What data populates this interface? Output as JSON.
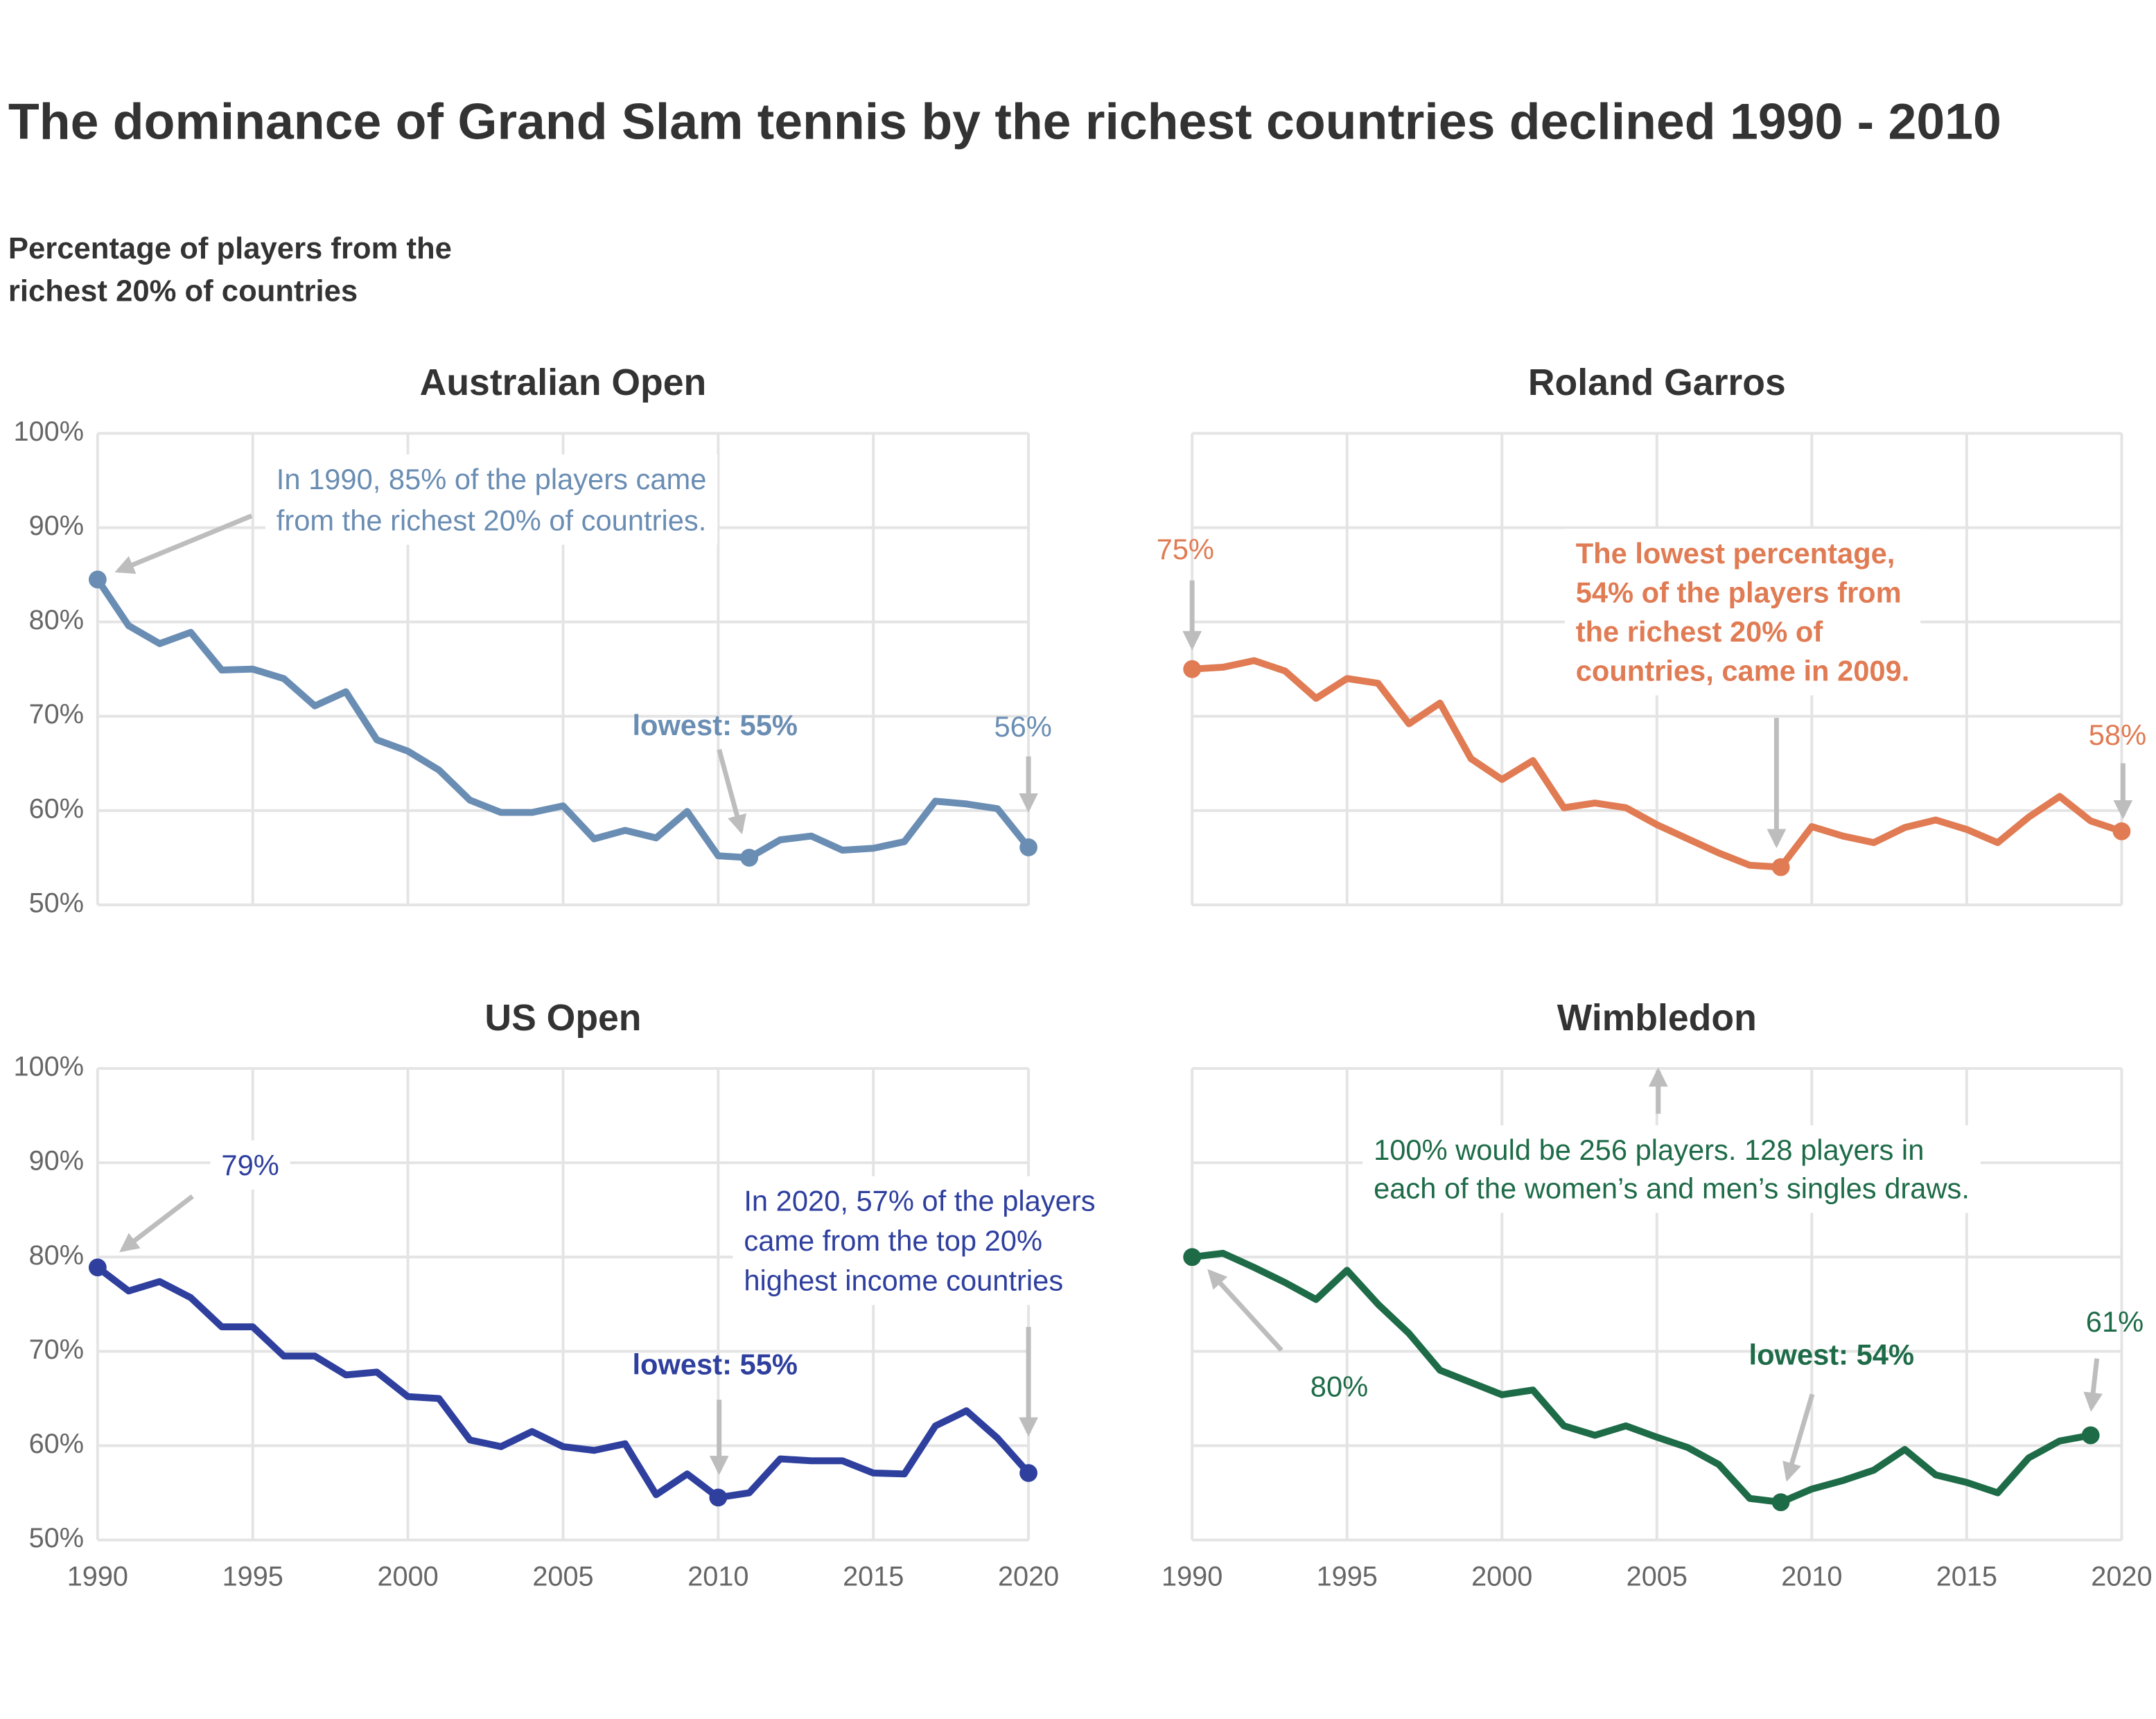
{
  "title": "The dominance of Grand Slam tennis by the richest countries declined 1990 - 2010",
  "subtitle": [
    "Percentage of players from the",
    "richest 20% of countries"
  ],
  "chart_data": [
    {
      "type": "line",
      "title": "Australian Open",
      "color": "#6a8db3",
      "x": [
        1990,
        1991,
        1992,
        1993,
        1994,
        1995,
        1996,
        1997,
        1998,
        1999,
        2000,
        2001,
        2002,
        2003,
        2004,
        2005,
        2006,
        2007,
        2008,
        2009,
        2010,
        2011,
        2012,
        2013,
        2014,
        2015,
        2016,
        2017,
        2018,
        2019,
        2020
      ],
      "values": [
        84.5,
        79.6,
        77.7,
        78.9,
        74.9,
        75,
        74,
        71.1,
        72.6,
        67.5,
        66.3,
        64.3,
        61.1,
        59.8,
        59.8,
        60.5,
        57,
        57.9,
        57.1,
        59.9,
        55.2,
        55,
        56.9,
        57.3,
        55.8,
        56,
        56.7,
        61,
        60.7,
        60.2,
        56.1
      ],
      "xlim": [
        1990,
        2020
      ],
      "ylim": [
        50,
        100
      ],
      "xticks": [
        1990,
        1995,
        2000,
        2005,
        2010,
        2015,
        2020
      ],
      "yticks": [
        {
          "value": 50,
          "label": "50%"
        },
        {
          "value": 60,
          "label": "60%"
        },
        {
          "value": 70,
          "label": "70%"
        },
        {
          "value": 80,
          "label": "80%"
        },
        {
          "value": 90,
          "label": "90%"
        },
        {
          "value": 100,
          "label": "100%"
        }
      ],
      "grid": true,
      "annotations": [
        [
          "In 1990, 85% of the players came",
          "from the richest 20% of countries."
        ],
        [
          "lowest: 55%"
        ],
        [
          "56%"
        ]
      ]
    },
    {
      "type": "line",
      "title": "Roland Garros",
      "color": "#e07b53",
      "x": [
        1990,
        1991,
        1992,
        1993,
        1994,
        1995,
        1996,
        1997,
        1998,
        1999,
        2000,
        2001,
        2002,
        2003,
        2004,
        2005,
        2006,
        2007,
        2008,
        2009,
        2010,
        2011,
        2012,
        2013,
        2014,
        2015,
        2016,
        2017,
        2018,
        2019,
        2020
      ],
      "values": [
        75,
        75.2,
        75.9,
        74.8,
        71.9,
        74,
        73.5,
        69.2,
        71.4,
        65.5,
        63.3,
        65.3,
        60.3,
        60.8,
        60.3,
        58.5,
        57,
        55.5,
        54.2,
        54,
        58.3,
        57.3,
        56.6,
        58.2,
        59,
        58,
        56.6,
        59.3,
        61.5,
        58.9,
        57.8
      ],
      "xlim": [
        1990,
        2020
      ],
      "ylim": [
        50,
        100
      ],
      "xticks": [
        1990,
        1995,
        2000,
        2005,
        2010,
        2015,
        2020
      ],
      "yticks": [
        50,
        60,
        70,
        80,
        90,
        100
      ],
      "grid": true,
      "annotations": [
        [
          "75%"
        ],
        [
          "The lowest percentage,",
          "54% of the players from",
          "the richest  20% of",
          "countries, came in 2009."
        ],
        [
          "58%"
        ]
      ]
    },
    {
      "type": "line",
      "title": "US Open",
      "color": "#2e3f9e",
      "x": [
        1990,
        1991,
        1992,
        1993,
        1994,
        1995,
        1996,
        1997,
        1998,
        1999,
        2000,
        2001,
        2002,
        2003,
        2004,
        2005,
        2006,
        2007,
        2008,
        2009,
        2010,
        2011,
        2012,
        2013,
        2014,
        2015,
        2016,
        2017,
        2018,
        2019,
        2020
      ],
      "values": [
        78.9,
        76.4,
        77.4,
        75.7,
        72.6,
        72.6,
        69.5,
        69.5,
        67.5,
        67.8,
        65.2,
        65,
        60.6,
        59.9,
        61.5,
        59.9,
        59.5,
        60.2,
        54.8,
        57,
        54.5,
        55,
        58.6,
        58.4,
        58.4,
        57.1,
        57,
        62.1,
        63.7,
        60.8,
        57.1
      ],
      "xlim": [
        1990,
        2020
      ],
      "ylim": [
        50,
        100
      ],
      "xticks": [
        1990,
        1995,
        2000,
        2005,
        2010,
        2015,
        2020
      ],
      "yticks": [
        {
          "value": 50,
          "label": "50%"
        },
        {
          "value": 60,
          "label": "60%"
        },
        {
          "value": 70,
          "label": "70%"
        },
        {
          "value": 80,
          "label": "80%"
        },
        {
          "value": 90,
          "label": "90%"
        },
        {
          "value": 100,
          "label": "100%"
        }
      ],
      "grid": true,
      "annotations": [
        [
          "79%"
        ],
        [
          "In 2020, 57% of the players",
          "came from the top 20%",
          "highest income countries"
        ],
        [
          "lowest: 55%"
        ]
      ]
    },
    {
      "type": "line",
      "title": "Wimbledon",
      "color": "#1e6b48",
      "x": [
        1990,
        1991,
        1992,
        1993,
        1994,
        1995,
        1996,
        1997,
        1998,
        1999,
        2000,
        2001,
        2002,
        2003,
        2004,
        2005,
        2006,
        2007,
        2008,
        2009,
        2010,
        2011,
        2012,
        2013,
        2014,
        2015,
        2016,
        2017,
        2018,
        2019
      ],
      "values": [
        80,
        80.4,
        78.9,
        77.3,
        75.5,
        78.6,
        75,
        71.9,
        68,
        66.7,
        65.4,
        65.9,
        62.1,
        61.1,
        62.1,
        60.9,
        59.8,
        58,
        54.4,
        54,
        55.4,
        56.3,
        57.4,
        59.6,
        56.9,
        56.1,
        55,
        58.7,
        60.5,
        61.1
      ],
      "xlim": [
        1990,
        2020
      ],
      "ylim": [
        50,
        100
      ],
      "xticks": [
        1990,
        1995,
        2000,
        2005,
        2010,
        2015,
        2020
      ],
      "yticks": [
        50,
        60,
        70,
        80,
        90,
        100
      ],
      "grid": true,
      "annotations": [
        [
          "100% would be 256 players. 128 players in",
          "each of the women’s and men’s singles draws."
        ],
        [
          "80%"
        ],
        [
          "lowest: 54%"
        ],
        [
          "61%"
        ]
      ]
    }
  ]
}
